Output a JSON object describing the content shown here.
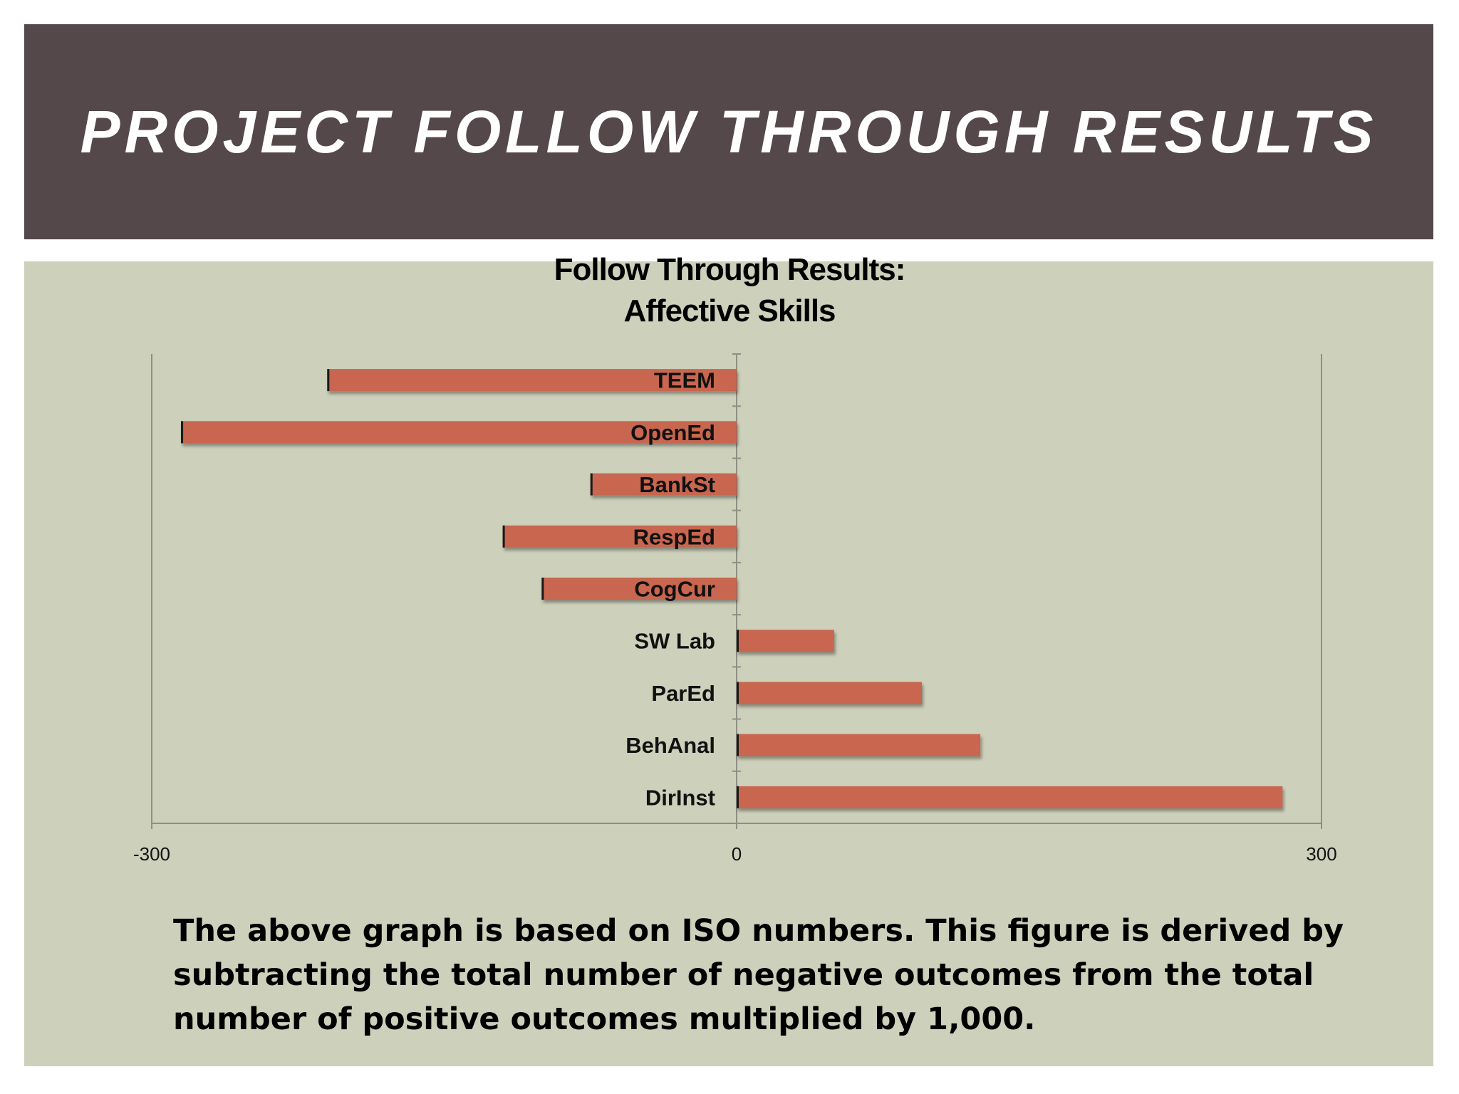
{
  "slide": {
    "title": "PROJECT FOLLOW THROUGH RESULTS",
    "caption": "The above graph is based on ISO numbers. This figure is derived by subtracting the total number of negative outcomes from the total number of positive outcomes multiplied by 1,000."
  },
  "colors": {
    "header_bg": "#54484b",
    "content_bg": "#cdd0ba",
    "bar": "#c86650"
  },
  "chart_data": {
    "type": "bar",
    "orientation": "horizontal",
    "title_lines": [
      "Follow Through Results:",
      "Affective Skills"
    ],
    "categories": [
      "TEEM",
      "OpenEd",
      "BankSt",
      "RespEd",
      "CogCur",
      "SW Lab",
      "ParEd",
      "BehAnal",
      "DirInst"
    ],
    "values": [
      -210,
      -285,
      -75,
      -120,
      -100,
      50,
      95,
      125,
      280
    ],
    "xlim": [
      -300,
      300
    ],
    "x_ticks": [
      "-300",
      "0",
      "300"
    ],
    "grid": false,
    "legend": "none"
  }
}
